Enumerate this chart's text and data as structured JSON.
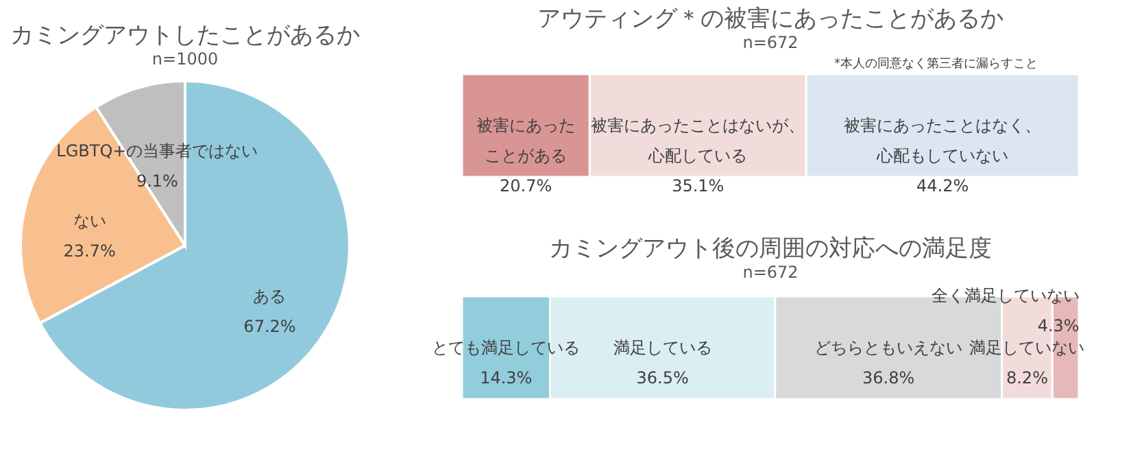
{
  "chart_data": [
    {
      "type": "pie",
      "title": "カミングアウトしたことがあるか",
      "subtitle": "n=1000",
      "categories": [
        "ある",
        "ない",
        "LGBTQ+の当事者ではない"
      ],
      "values": [
        67.2,
        23.7,
        9.1
      ],
      "colors": [
        "#92cadd",
        "#f9c08f",
        "#bfbfbf"
      ],
      "value_labels": [
        "67.2%",
        "23.7%",
        "9.1%"
      ],
      "legend": false
    },
    {
      "type": "bar",
      "orientation": "horizontal",
      "stacked": true,
      "title": "アウティング＊の被害にあったことがあるか",
      "subtitle": "n=672",
      "annotations": [
        "*本人の同意なく第三者に漏らすこと"
      ],
      "categories": [
        null
      ],
      "tick_labels": false,
      "series": [
        {
          "name": "被害にあったことがある",
          "color": "#d99594",
          "values": [
            20.7
          ],
          "value_labels": [
            "20.7%"
          ]
        },
        {
          "name": "被害にあったことはないが、心配している",
          "color": "#f2dcdb",
          "values": [
            35.1
          ],
          "value_labels": [
            "35.1%"
          ]
        },
        {
          "name": "被害にあったことはなく、心配もしていない",
          "color": "#dce6f2",
          "values": [
            44.2
          ],
          "value_labels": [
            "44.2%"
          ]
        }
      ]
    },
    {
      "type": "bar",
      "orientation": "horizontal",
      "stacked": true,
      "title": "カミングアウト後の周囲の対応への満足度",
      "subtitle": "n=672",
      "categories": [
        null
      ],
      "tick_labels": false,
      "series": [
        {
          "name": "とても満足している",
          "color": "#92cddc",
          "values": [
            14.3
          ],
          "value_labels": [
            "14.3%"
          ]
        },
        {
          "name": "満足している",
          "color": "#daeef3",
          "values": [
            36.5
          ],
          "value_labels": [
            "36.5%"
          ]
        },
        {
          "name": "どちらともいえない",
          "color": "#d9d9d9",
          "values": [
            36.8
          ],
          "value_labels": [
            "36.8%"
          ]
        },
        {
          "name": "満足していない",
          "color": "#f2dcdb",
          "values": [
            8.2
          ],
          "value_labels": [
            "8.2%"
          ]
        },
        {
          "name": "全く満足していない",
          "color": "#e6b9b8",
          "values": [
            4.3
          ],
          "value_labels": [
            "4.3%"
          ]
        }
      ]
    }
  ]
}
